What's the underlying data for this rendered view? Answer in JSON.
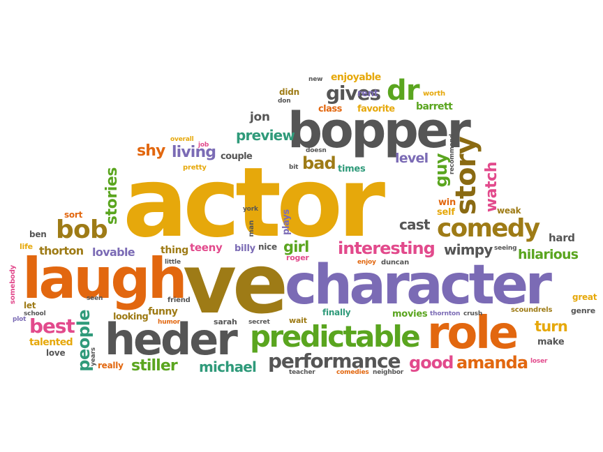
{
  "palette": {
    "gold": "#e6a80b",
    "orange": "#e2670f",
    "purple": "#7b6bb5",
    "gray": "#555555",
    "green": "#5aa51f",
    "olive": "#9e7b16",
    "pink": "#e24a8c",
    "teal": "#2f9a7a",
    "brown": "#8a6a12"
  },
  "words": {
    "actor": "actor",
    "ve": "ve",
    "laugh": "laugh",
    "character": "character",
    "bopper": "bopper",
    "heder": "heder",
    "predictable": "predictable",
    "role": "role",
    "comedy": "comedy",
    "story": "story",
    "performance": "performance",
    "bob": "bob",
    "interesting": "interesting",
    "gives": "gives",
    "dr": "dr",
    "amanda": "amanda",
    "good": "good",
    "best": "best",
    "stiller": "stiller",
    "michael": "michael",
    "people": "people",
    "stories": "stories",
    "watch": "watch",
    "guy": "guy",
    "hilarious": "hilarious",
    "turn": "turn",
    "living": "living",
    "shy": "shy",
    "preview": "preview",
    "bad": "bad",
    "cast": "cast",
    "wimpy": "wimpy",
    "level": "level",
    "girl": "girl",
    "jon": "jon",
    "lovable": "lovable",
    "thorton": "thorton",
    "funny": "funny",
    "looking": "looking",
    "talented": "talented",
    "couple": "couple",
    "enjoyable": "enjoyable",
    "class": "class",
    "favorite": "favorite",
    "barrett": "barrett",
    "rent": "rent",
    "didn": "didn",
    "don": "don",
    "new": "new",
    "worth": "worth",
    "overall": "overall",
    "job": "job",
    "pretty": "pretty",
    "doesn": "doesn",
    "bit": "bit",
    "times": "times",
    "recommend": "recommend",
    "win": "win",
    "self": "self",
    "weak": "weak",
    "hard": "hard",
    "sort": "sort",
    "ben": "ben",
    "life": "life",
    "york": "york",
    "man": "man",
    "plays": "plays",
    "thing": "thing",
    "teeny": "teeny",
    "billy": "billy",
    "nice": "nice",
    "roger": "roger",
    "enjoy": "enjoy",
    "duncan": "duncan",
    "seeing": "seeing",
    "little": "little",
    "somebody": "somebody",
    "seen": "seen",
    "friend": "friend",
    "let": "let",
    "school": "school",
    "plot": "plot",
    "humor": "humor",
    "sarah": "sarah",
    "secret": "secret",
    "wait": "wait",
    "finally": "finally",
    "movies": "movies",
    "thornton": "thornton",
    "crush": "crush",
    "scoundrels": "scoundrels",
    "genre": "genre",
    "great": "great",
    "make": "make",
    "loser": "loser",
    "love": "love",
    "years": "years",
    "really": "really",
    "teacher": "teacher",
    "comedies": "comedies",
    "neighbor": "neighbor"
  }
}
